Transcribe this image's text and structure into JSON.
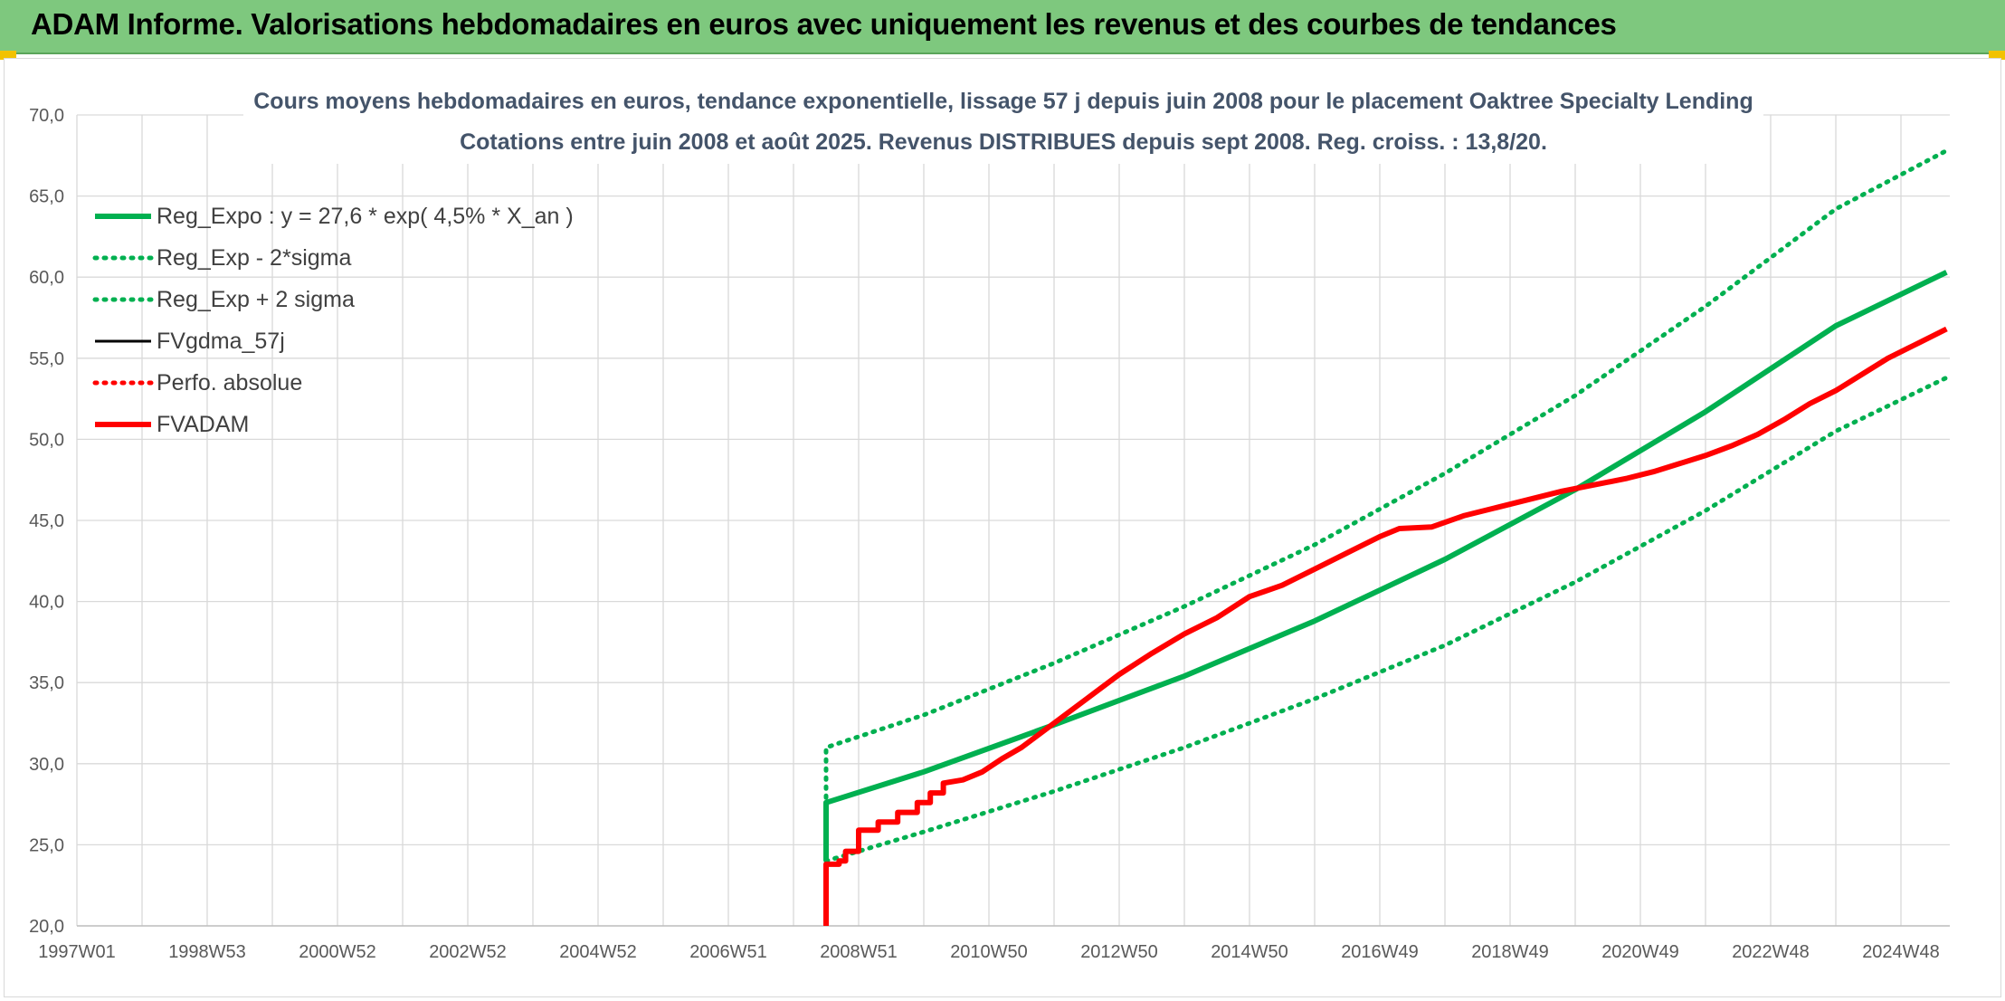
{
  "banner": {
    "title": "ADAM Informe. Valorisations hebdomadaires en euros avec uniquement les revenus et des courbes de tendances"
  },
  "colors": {
    "banner_bg": "#7ec87e",
    "accent_yellow": "#f2c200",
    "green": "#00b050",
    "red": "#ff0000",
    "black": "#000000",
    "grid": "#d9d9d9",
    "title_text": "#44546a",
    "axis_text": "#595959"
  },
  "chart_data": {
    "type": "line",
    "title": "Cours moyens hebdomadaires en euros, tendance exponentielle, lissage 57 j depuis juin 2008 pour le placement Oaktree Specialty Lending",
    "subtitle": "Cotations entre juin 2008 et août 2025. Revenus DISTRIBUES depuis sept 2008. Reg. croiss. : 13,8/20.",
    "xlabel": "",
    "ylabel": "",
    "ylim": [
      20,
      70
    ],
    "y_ticks": [
      "20,0",
      "25,0",
      "30,0",
      "35,0",
      "40,0",
      "45,0",
      "50,0",
      "55,0",
      "60,0",
      "65,0",
      "70,0"
    ],
    "xlim": [
      1997.0,
      2025.75
    ],
    "x_ticks": [
      {
        "label": "1997W01",
        "x": 1997.0
      },
      {
        "label": "1998W53",
        "x": 1999.0
      },
      {
        "label": "2000W52",
        "x": 2001.0
      },
      {
        "label": "2002W52",
        "x": 2003.0
      },
      {
        "label": "2004W52",
        "x": 2005.0
      },
      {
        "label": "2006W51",
        "x": 2007.0
      },
      {
        "label": "2008W51",
        "x": 2009.0
      },
      {
        "label": "2010W50",
        "x": 2011.0
      },
      {
        "label": "2012W50",
        "x": 2013.0
      },
      {
        "label": "2014W50",
        "x": 2015.0
      },
      {
        "label": "2016W49",
        "x": 2017.0
      },
      {
        "label": "2018W49",
        "x": 2019.0
      },
      {
        "label": "2020W49",
        "x": 2021.0
      },
      {
        "label": "2022W48",
        "x": 2023.0
      },
      {
        "label": "2024W48",
        "x": 2025.0
      }
    ],
    "grid": true,
    "legend_position": "top-left",
    "series": [
      {
        "name": "Reg_Expo : y = 27,6 * exp( 4,5% *  X_an )",
        "style": "solid-thick",
        "color": "#00b050",
        "points": [
          [
            2008.5,
            24.0
          ],
          [
            2008.5,
            27.6
          ],
          [
            2010.0,
            29.5
          ],
          [
            2012.0,
            32.4
          ],
          [
            2014.0,
            35.4
          ],
          [
            2016.0,
            38.8
          ],
          [
            2018.0,
            42.6
          ],
          [
            2020.0,
            46.9
          ],
          [
            2022.0,
            51.7
          ],
          [
            2024.0,
            57.0
          ],
          [
            2025.7,
            60.3
          ]
        ]
      },
      {
        "name": "Reg_Exp - 2*sigma",
        "style": "dotted",
        "color": "#00b050",
        "points": [
          [
            2008.5,
            24.0
          ],
          [
            2010.0,
            25.8
          ],
          [
            2012.0,
            28.3
          ],
          [
            2014.0,
            31.0
          ],
          [
            2016.0,
            34.0
          ],
          [
            2018.0,
            37.3
          ],
          [
            2020.0,
            41.2
          ],
          [
            2022.0,
            45.6
          ],
          [
            2024.0,
            50.5
          ],
          [
            2025.7,
            53.8
          ]
        ]
      },
      {
        "name": "Reg_Exp + 2 sigma",
        "style": "dotted",
        "color": "#00b050",
        "points": [
          [
            2008.5,
            24.0
          ],
          [
            2008.5,
            31.0
          ],
          [
            2010.0,
            33.0
          ],
          [
            2012.0,
            36.2
          ],
          [
            2014.0,
            39.7
          ],
          [
            2016.0,
            43.5
          ],
          [
            2018.0,
            47.9
          ],
          [
            2020.0,
            52.7
          ],
          [
            2022.0,
            58.2
          ],
          [
            2024.0,
            64.2
          ],
          [
            2025.7,
            67.8
          ]
        ]
      },
      {
        "name": "FVgdma_57j",
        "style": "solid",
        "color": "#000000",
        "points": []
      },
      {
        "name": "Perfo. absolue",
        "style": "dotted",
        "color": "#ff0000",
        "points": []
      },
      {
        "name": "FVADAM",
        "style": "solid-thick",
        "color": "#ff0000",
        "points": [
          [
            2008.5,
            20.0
          ],
          [
            2008.5,
            23.8
          ],
          [
            2008.7,
            23.8
          ],
          [
            2008.7,
            24.0
          ],
          [
            2008.8,
            24.0
          ],
          [
            2008.8,
            24.6
          ],
          [
            2009.0,
            24.6
          ],
          [
            2009.0,
            25.9
          ],
          [
            2009.3,
            25.9
          ],
          [
            2009.3,
            26.4
          ],
          [
            2009.6,
            26.4
          ],
          [
            2009.6,
            27.0
          ],
          [
            2009.9,
            27.0
          ],
          [
            2009.9,
            27.6
          ],
          [
            2010.1,
            27.6
          ],
          [
            2010.1,
            28.2
          ],
          [
            2010.3,
            28.2
          ],
          [
            2010.3,
            28.8
          ],
          [
            2010.6,
            29.0
          ],
          [
            2010.9,
            29.5
          ],
          [
            2011.2,
            30.3
          ],
          [
            2011.5,
            31.0
          ],
          [
            2012.0,
            32.5
          ],
          [
            2012.5,
            34.0
          ],
          [
            2013.0,
            35.5
          ],
          [
            2013.5,
            36.8
          ],
          [
            2014.0,
            38.0
          ],
          [
            2014.5,
            39.0
          ],
          [
            2015.0,
            40.3
          ],
          [
            2015.5,
            41.0
          ],
          [
            2016.0,
            42.0
          ],
          [
            2016.5,
            43.0
          ],
          [
            2017.0,
            44.0
          ],
          [
            2017.3,
            44.5
          ],
          [
            2017.8,
            44.6
          ],
          [
            2018.3,
            45.3
          ],
          [
            2018.8,
            45.8
          ],
          [
            2019.3,
            46.3
          ],
          [
            2019.8,
            46.8
          ],
          [
            2020.3,
            47.2
          ],
          [
            2020.8,
            47.6
          ],
          [
            2021.2,
            48.0
          ],
          [
            2021.6,
            48.5
          ],
          [
            2022.0,
            49.0
          ],
          [
            2022.4,
            49.6
          ],
          [
            2022.8,
            50.3
          ],
          [
            2023.2,
            51.2
          ],
          [
            2023.6,
            52.2
          ],
          [
            2024.0,
            53.0
          ],
          [
            2024.4,
            54.0
          ],
          [
            2024.8,
            55.0
          ],
          [
            2025.2,
            55.8
          ],
          [
            2025.7,
            56.8
          ]
        ]
      }
    ]
  }
}
